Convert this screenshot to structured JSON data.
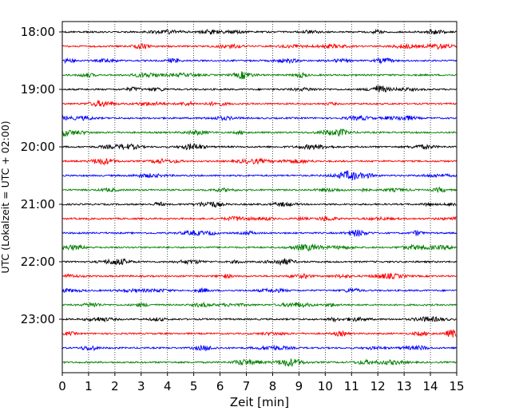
{
  "chart_data": {
    "type": "line",
    "subtype": "helicorder",
    "xlabel": "Zeit  [min]",
    "ylabel": "UTC (Lokalzeit = UTC + 02:00)",
    "xlim": [
      0,
      15
    ],
    "x_ticks": [
      "0",
      "1",
      "2",
      "3",
      "4",
      "5",
      "6",
      "7",
      "8",
      "9",
      "10",
      "11",
      "12",
      "13",
      "14",
      "15"
    ],
    "y_tick_labels": [
      "18:00",
      "19:00",
      "20:00",
      "21:00",
      "22:00",
      "23:00"
    ],
    "grid": "vertical dotted",
    "series_colors": [
      "#000000",
      "#ff0000",
      "#0000ff",
      "#008000"
    ],
    "traces": [
      {
        "time": "18:00"
      },
      {
        "time": "18:15"
      },
      {
        "time": "18:30"
      },
      {
        "time": "18:45"
      },
      {
        "time": "19:00"
      },
      {
        "time": "19:15"
      },
      {
        "time": "19:30"
      },
      {
        "time": "19:45"
      },
      {
        "time": "20:00"
      },
      {
        "time": "20:15"
      },
      {
        "time": "20:30"
      },
      {
        "time": "20:45"
      },
      {
        "time": "21:00"
      },
      {
        "time": "21:15"
      },
      {
        "time": "21:30"
      },
      {
        "time": "21:45"
      },
      {
        "time": "22:00"
      },
      {
        "time": "22:15"
      },
      {
        "time": "22:30"
      },
      {
        "time": "22:45"
      },
      {
        "time": "23:00"
      },
      {
        "time": "23:15"
      },
      {
        "time": "23:30"
      },
      {
        "time": "23:45"
      }
    ]
  }
}
